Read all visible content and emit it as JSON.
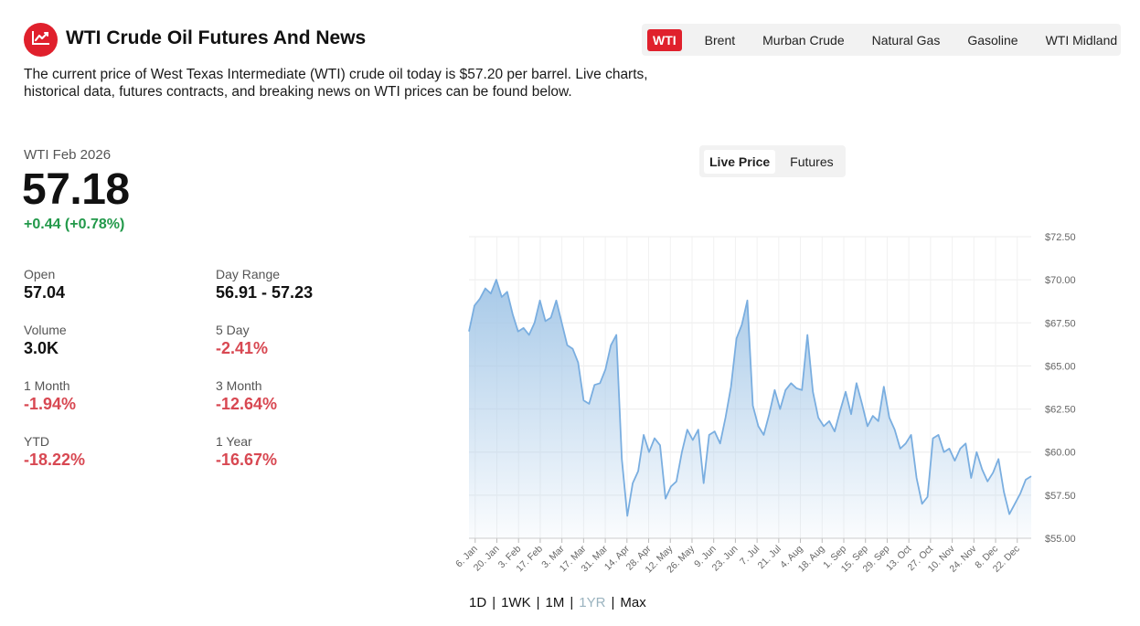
{
  "header": {
    "title": "WTI Crude Oil Futures And News",
    "intro": "The current price of West Texas Intermediate (WTI) crude oil today is $57.20 per barrel. Live charts, historical data, futures contracts, and breaking news on WTI prices can be found below.",
    "logo_icon": "trend-chart-icon",
    "accent_color": "#e0202c"
  },
  "commodity_tabs": [
    {
      "label": "WTI",
      "active": true
    },
    {
      "label": "Brent",
      "active": false
    },
    {
      "label": "Murban Crude",
      "active": false
    },
    {
      "label": "Natural Gas",
      "active": false
    },
    {
      "label": "Gasoline",
      "active": false
    },
    {
      "label": "WTI Midland",
      "active": false
    }
  ],
  "quote": {
    "contract": "WTI Feb 2026",
    "price": "57.18",
    "change": "+0.44 (+0.78%)",
    "positive_color": "#22994a",
    "negative_color": "#d84852"
  },
  "stats": [
    {
      "label": "Open",
      "value": "57.04",
      "tone": "neutral"
    },
    {
      "label": "Day Range",
      "value": "56.91 - 57.23",
      "tone": "neutral"
    },
    {
      "label": "Volume",
      "value": "3.0K",
      "tone": "neutral"
    },
    {
      "label": "5 Day",
      "value": "-2.41%",
      "tone": "negative"
    },
    {
      "label": "1 Month",
      "value": "-1.94%",
      "tone": "negative"
    },
    {
      "label": "3 Month",
      "value": "-12.64%",
      "tone": "negative"
    },
    {
      "label": "YTD",
      "value": "-18.22%",
      "tone": "negative"
    },
    {
      "label": "1 Year",
      "value": "-16.67%",
      "tone": "negative"
    }
  ],
  "view_tabs": [
    {
      "label": "Live Price",
      "active": true
    },
    {
      "label": "Futures",
      "active": false
    }
  ],
  "ranges": [
    {
      "label": "1D",
      "disabled": false
    },
    {
      "label": "1WK",
      "disabled": false
    },
    {
      "label": "1M",
      "disabled": false
    },
    {
      "label": "1YR",
      "disabled": true
    },
    {
      "label": "Max",
      "disabled": false
    }
  ],
  "chart_data": {
    "type": "area",
    "title": "",
    "xlabel": "",
    "ylabel": "",
    "ylim": [
      55,
      72.5
    ],
    "y_ticks": [
      "$55.00",
      "$57.50",
      "$60.00",
      "$62.50",
      "$65.00",
      "$67.50",
      "$70.00",
      "$72.50"
    ],
    "y_tick_values": [
      55,
      57.5,
      60,
      62.5,
      65,
      67.5,
      70,
      72.5
    ],
    "x_ticks": [
      "6. Jan",
      "20. Jan",
      "3. Feb",
      "17. Feb",
      "3. Mar",
      "17. Mar",
      "31. Mar",
      "14. Apr",
      "28. Apr",
      "12. May",
      "26. May",
      "9. Jun",
      "23. Jun",
      "7. Jul",
      "21. Jul",
      "4. Aug",
      "18. Aug",
      "1. Sep",
      "15. Sep",
      "29. Sep",
      "13. Oct",
      "27. Oct",
      "10. Nov",
      "24. Nov",
      "8. Dec",
      "22. Dec"
    ],
    "grid": true,
    "line_color": "#7aaee0",
    "fill_color": "#a7c9e8",
    "series": [
      {
        "x_start": "2025-01-02",
        "x_end": "2025-12-31",
        "values": [
          67.0,
          68.5,
          68.9,
          69.5,
          69.2,
          70.0,
          69.0,
          69.3,
          68.0,
          67.0,
          67.2,
          66.8,
          67.5,
          68.8,
          67.6,
          67.8,
          68.8,
          67.5,
          66.2,
          66.0,
          65.2,
          63.0,
          62.8,
          63.9,
          64.0,
          64.8,
          66.2,
          66.8,
          59.6,
          56.3,
          58.2,
          58.9,
          61.0,
          60.0,
          60.8,
          60.4,
          57.3,
          58.0,
          58.3,
          60.0,
          61.3,
          60.7,
          61.3,
          58.2,
          61.0,
          61.2,
          60.5,
          62.0,
          63.8,
          66.6,
          67.4,
          68.8,
          62.7,
          61.5,
          61.0,
          62.2,
          63.6,
          62.5,
          63.6,
          64.0,
          63.7,
          63.6,
          66.8,
          63.5,
          62.0,
          61.5,
          61.8,
          61.2,
          62.4,
          63.5,
          62.2,
          64.0,
          62.8,
          61.5,
          62.1,
          61.8,
          63.8,
          62.0,
          61.3,
          60.2,
          60.5,
          61.0,
          58.5,
          57.0,
          57.4,
          60.8,
          61.0,
          60.0,
          60.2,
          59.5,
          60.2,
          60.5,
          58.5,
          60.0,
          59.0,
          58.3,
          58.8,
          59.6,
          57.7,
          56.4,
          57.0,
          57.6,
          58.4,
          58.6
        ]
      }
    ]
  }
}
